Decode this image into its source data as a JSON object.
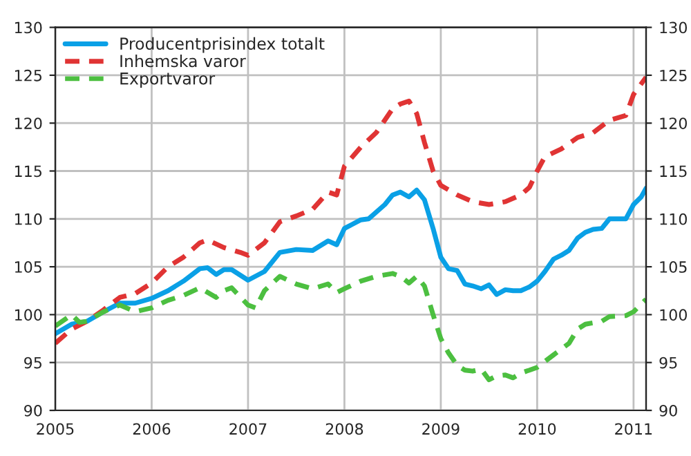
{
  "chart_data": {
    "type": "line",
    "xlim": [
      2005,
      2011.13
    ],
    "xticks": [
      2005,
      2006,
      2007,
      2008,
      2009,
      2010,
      2011
    ],
    "ylim": [
      90,
      130
    ],
    "yticks": [
      90,
      95,
      100,
      105,
      110,
      115,
      120,
      125,
      130
    ],
    "y2lim": [
      90,
      130
    ],
    "y2ticks": [
      90,
      95,
      100,
      105,
      110,
      115,
      120,
      125,
      130
    ],
    "grid": true,
    "legend": "top left",
    "series": [
      {
        "name": "Producentprisindex totalt",
        "color": "#0aa0e6",
        "line_style": "solid",
        "x": [
          2005.0,
          2005.17,
          2005.33,
          2005.5,
          2005.67,
          2005.83,
          2006.0,
          2006.17,
          2006.33,
          2006.5,
          2006.58,
          2006.67,
          2006.75,
          2006.83,
          2007.0,
          2007.17,
          2007.33,
          2007.5,
          2007.67,
          2007.83,
          2007.92,
          2008.0,
          2008.17,
          2008.25,
          2008.42,
          2008.5,
          2008.58,
          2008.67,
          2008.75,
          2008.83,
          2008.92,
          2009.0,
          2009.08,
          2009.17,
          2009.25,
          2009.33,
          2009.42,
          2009.5,
          2009.58,
          2009.67,
          2009.75,
          2009.83,
          2009.92,
          2010.0,
          2010.08,
          2010.17,
          2010.25,
          2010.33,
          2010.42,
          2010.5,
          2010.58,
          2010.67,
          2010.75,
          2010.83,
          2010.92,
          2011.0,
          2011.08,
          2011.13
        ],
        "values": [
          98.0,
          99.0,
          99.3,
          100.3,
          101.2,
          101.2,
          101.7,
          102.5,
          103.5,
          104.8,
          104.9,
          104.2,
          104.7,
          104.7,
          103.6,
          104.5,
          106.5,
          106.8,
          106.7,
          107.7,
          107.3,
          109.0,
          109.9,
          110.0,
          111.5,
          112.5,
          112.8,
          112.3,
          113.0,
          112.0,
          109.0,
          106.0,
          104.8,
          104.6,
          103.2,
          103.0,
          102.7,
          103.1,
          102.1,
          102.6,
          102.5,
          102.5,
          102.9,
          103.5,
          104.5,
          105.8,
          106.2,
          106.7,
          108.0,
          108.6,
          108.9,
          109.0,
          110.0,
          110.0,
          110.0,
          111.5,
          112.3,
          113.2
        ]
      },
      {
        "name": "Inhemska varor",
        "color": "#e03434",
        "line_style": "dashed",
        "x": [
          2005.0,
          2005.17,
          2005.33,
          2005.5,
          2005.67,
          2005.83,
          2006.0,
          2006.17,
          2006.33,
          2006.5,
          2006.58,
          2006.75,
          2006.92,
          2007.0,
          2007.17,
          2007.33,
          2007.5,
          2007.67,
          2007.83,
          2007.92,
          2008.0,
          2008.17,
          2008.33,
          2008.5,
          2008.58,
          2008.67,
          2008.75,
          2008.83,
          2008.92,
          2009.0,
          2009.17,
          2009.33,
          2009.5,
          2009.67,
          2009.83,
          2009.92,
          2010.0,
          2010.08,
          2010.25,
          2010.42,
          2010.58,
          2010.75,
          2010.92,
          2011.0,
          2011.13
        ],
        "values": [
          97.0,
          98.5,
          99.3,
          100.5,
          101.8,
          102.2,
          103.3,
          105.0,
          106.0,
          107.5,
          107.8,
          107.0,
          106.5,
          106.2,
          107.5,
          109.7,
          110.3,
          111.0,
          112.8,
          112.5,
          115.5,
          117.5,
          119.0,
          121.5,
          122.0,
          122.3,
          121.0,
          118.0,
          115.0,
          113.5,
          112.5,
          111.8,
          111.5,
          111.8,
          112.5,
          113.3,
          115.0,
          116.5,
          117.3,
          118.5,
          119.0,
          120.3,
          120.8,
          123.0,
          124.8
        ]
      },
      {
        "name": "Exportvaror",
        "color": "#4cbf40",
        "line_style": "dashed",
        "x": [
          2005.0,
          2005.17,
          2005.25,
          2005.33,
          2005.5,
          2005.67,
          2005.83,
          2006.0,
          2006.17,
          2006.33,
          2006.5,
          2006.67,
          2006.75,
          2006.83,
          2007.0,
          2007.08,
          2007.17,
          2007.33,
          2007.5,
          2007.67,
          2007.83,
          2007.92,
          2008.0,
          2008.17,
          2008.33,
          2008.5,
          2008.58,
          2008.67,
          2008.75,
          2008.83,
          2008.92,
          2009.0,
          2009.08,
          2009.17,
          2009.25,
          2009.33,
          2009.42,
          2009.5,
          2009.58,
          2009.67,
          2009.75,
          2009.83,
          2009.92,
          2010.0,
          2010.17,
          2010.33,
          2010.42,
          2010.5,
          2010.67,
          2010.75,
          2010.92,
          2011.0,
          2011.13
        ],
        "values": [
          98.8,
          100.0,
          99.2,
          99.3,
          100.3,
          101.0,
          100.3,
          100.7,
          101.5,
          102.0,
          102.8,
          101.8,
          102.5,
          102.8,
          101.0,
          100.7,
          102.5,
          104.0,
          103.2,
          102.7,
          103.2,
          102.3,
          102.7,
          103.5,
          104.0,
          104.3,
          104.0,
          103.3,
          104.0,
          103.0,
          100.0,
          97.5,
          96.0,
          94.7,
          94.2,
          94.1,
          94.3,
          93.2,
          93.6,
          93.7,
          93.4,
          93.9,
          94.2,
          94.5,
          95.8,
          97.0,
          98.5,
          99.0,
          99.3,
          99.8,
          99.9,
          100.3,
          101.6
        ]
      }
    ]
  }
}
